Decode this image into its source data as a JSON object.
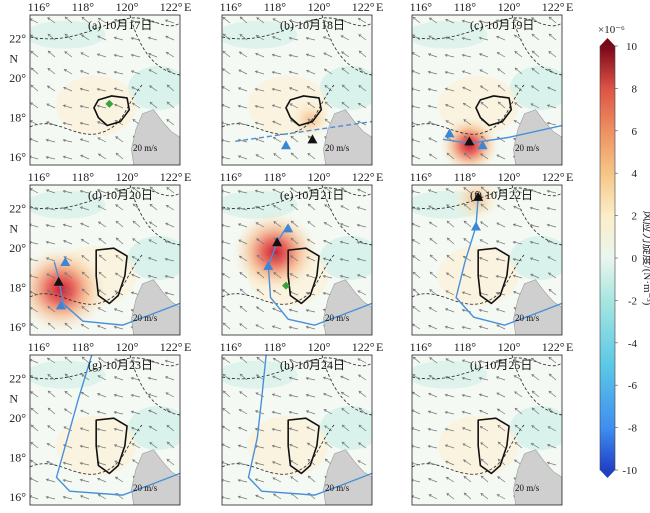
{
  "map": {
    "lon_labels": [
      "116°",
      "118°",
      "120°",
      "122°"
    ],
    "lon_suffix": "E",
    "lat_labels": [
      "22°",
      "20°",
      "18°",
      "16°"
    ],
    "lat_suffix": "N",
    "lon_range": [
      115.6,
      122.4
    ],
    "lat_range": [
      15.6,
      23.2
    ],
    "vector_scale_label": "20 m/s",
    "land_color": "#cfcfcf",
    "track_color": "#4a90d9",
    "marker_blue": "#3d86d6",
    "marker_black": "#111111",
    "marker_green": "#3aa23a"
  },
  "panels": [
    {
      "label": "(a) 10月17日",
      "show_lon": true,
      "show_lat": true,
      "vort": [],
      "track": [],
      "markers": [
        {
          "type": "green-diamond",
          "lon": 119.2,
          "lat": 18.7
        }
      ]
    },
    {
      "label": "(b) 10月18日",
      "show_lon": true,
      "show_lat": false,
      "vort": [
        {
          "lon": 119.6,
          "lat": 17.9,
          "amp": 2
        }
      ],
      "track": [
        [
          116.2,
          16.8
        ],
        [
          122.4,
          17.8
        ]
      ],
      "track_dashed": true,
      "markers": [
        {
          "type": "blue-triangle",
          "lon": 118.5,
          "lat": 16.6
        },
        {
          "type": "black-triangle",
          "lon": 119.7,
          "lat": 16.9
        }
      ]
    },
    {
      "label": "(c) 10月19日",
      "show_lon": true,
      "show_lat": false,
      "vort": [
        {
          "lon": 118.2,
          "lat": 16.6,
          "amp": 5
        }
      ],
      "track": [
        [
          117.0,
          16.9
        ],
        [
          118.2,
          16.7
        ],
        [
          120.0,
          17.0
        ],
        [
          122.4,
          17.6
        ]
      ],
      "markers": [
        {
          "type": "blue-triangle",
          "lon": 117.3,
          "lat": 17.2
        },
        {
          "type": "black-triangle",
          "lon": 118.2,
          "lat": 16.8
        },
        {
          "type": "blue-triangle",
          "lon": 118.8,
          "lat": 16.6
        }
      ]
    },
    {
      "label": "(d) 10月20日",
      "show_lon": true,
      "show_lat": true,
      "vort": [
        {
          "lon": 117.0,
          "lat": 17.9,
          "amp": 10
        }
      ],
      "track": [
        [
          116.7,
          19.3
        ],
        [
          116.9,
          18.5
        ],
        [
          117.1,
          17.2
        ],
        [
          118.0,
          16.3
        ],
        [
          119.8,
          16.1
        ],
        [
          121.0,
          16.6
        ],
        [
          122.4,
          17.2
        ]
      ],
      "markers": [
        {
          "type": "blue-triangle",
          "lon": 117.2,
          "lat": 19.3
        },
        {
          "type": "black-triangle",
          "lon": 116.9,
          "lat": 18.3
        },
        {
          "type": "blue-triangle",
          "lon": 117.0,
          "lat": 17.1
        }
      ]
    },
    {
      "label": "(e) 10月21日",
      "show_lon": true,
      "show_lat": false,
      "vort": [
        {
          "lon": 118.0,
          "lat": 19.8,
          "amp": 9
        }
      ],
      "track": [
        [
          118.6,
          21.2
        ],
        [
          118.1,
          20.3
        ],
        [
          117.7,
          19.1
        ],
        [
          117.8,
          17.5
        ],
        [
          118.6,
          16.4
        ],
        [
          119.8,
          16.1
        ],
        [
          121.0,
          16.6
        ],
        [
          122.4,
          17.2
        ]
      ],
      "markers": [
        {
          "type": "blue-triangle",
          "lon": 118.6,
          "lat": 21.0
        },
        {
          "type": "black-triangle",
          "lon": 118.1,
          "lat": 20.3
        },
        {
          "type": "blue-triangle",
          "lon": 117.7,
          "lat": 19.1
        },
        {
          "type": "green-diamond",
          "lon": 118.5,
          "lat": 18.1
        }
      ]
    },
    {
      "label": "(f) 10月22日",
      "show_lon": true,
      "show_lat": false,
      "vort": [
        {
          "lon": 118.5,
          "lat": 22.5,
          "amp": 3
        }
      ],
      "track": [
        [
          118.6,
          22.6
        ],
        [
          118.5,
          21.1
        ],
        [
          118.0,
          19.3
        ],
        [
          117.6,
          17.5
        ],
        [
          118.4,
          16.5
        ],
        [
          119.8,
          16.1
        ],
        [
          121.0,
          16.6
        ],
        [
          122.4,
          17.2
        ]
      ],
      "markers": [
        {
          "type": "black-triangle",
          "lon": 118.6,
          "lat": 22.6
        },
        {
          "type": "blue-triangle",
          "lon": 118.5,
          "lat": 21.1
        }
      ]
    },
    {
      "label": "(g) 10月23日",
      "show_lon": true,
      "show_lat": true,
      "vort": [],
      "track": [
        [
          118.4,
          23.2
        ],
        [
          117.8,
          21.0
        ],
        [
          117.3,
          19.0
        ],
        [
          116.8,
          17.0
        ],
        [
          117.4,
          16.3
        ],
        [
          119.8,
          16.1
        ],
        [
          121.0,
          16.6
        ],
        [
          122.4,
          17.2
        ]
      ],
      "markers": []
    },
    {
      "label": "(h) 10月24日",
      "show_lon": true,
      "show_lat": false,
      "vort": [],
      "track": [
        [
          117.6,
          23.2
        ],
        [
          117.4,
          21.0
        ],
        [
          117.2,
          19.0
        ],
        [
          116.8,
          17.0
        ],
        [
          117.4,
          16.3
        ],
        [
          119.8,
          16.1
        ],
        [
          121.0,
          16.6
        ],
        [
          122.4,
          17.2
        ]
      ],
      "markers": []
    },
    {
      "label": "(i) 10月25日",
      "show_lon": true,
      "show_lat": false,
      "vort": [],
      "track": [],
      "markers": []
    }
  ],
  "colorbar": {
    "unit_label": "×10⁻⁶",
    "title": "风应力旋度/(N·m⁻³)",
    "min": -10,
    "max": 10,
    "ticks": [
      "10",
      "8",
      "6",
      "4",
      "2",
      "0",
      "-2",
      "-4",
      "-6",
      "-8",
      "-10"
    ],
    "colors": [
      "#2040c8",
      "#3f8ff0",
      "#5cc9e6",
      "#a7e6e0",
      "#eaf6ee",
      "#fbeec8",
      "#f6c587",
      "#ee9061",
      "#dd5346",
      "#b61f2c",
      "#7a0618"
    ]
  }
}
